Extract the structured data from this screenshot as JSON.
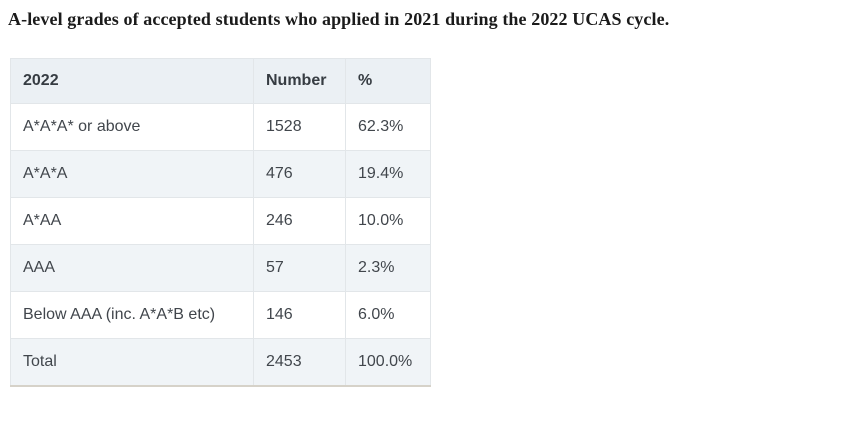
{
  "page": {
    "title": "A-level grades of accepted students who applied in 2021 during the 2022 UCAS cycle."
  },
  "table": {
    "headers": [
      "2022",
      "Number",
      "%"
    ],
    "rows": [
      {
        "grade": "A*A*A* or above",
        "number": "1528",
        "percent": "62.3%"
      },
      {
        "grade": "A*A*A",
        "number": "476",
        "percent": "19.4%"
      },
      {
        "grade": "A*AA",
        "number": "246",
        "percent": "10.0%"
      },
      {
        "grade": "AAA",
        "number": "57",
        "percent": "2.3%"
      },
      {
        "grade": "Below AAA (inc. A*A*B etc)",
        "number": "146",
        "percent": "6.0%"
      },
      {
        "grade": "Total",
        "number": "2453",
        "percent": "100.0%"
      }
    ]
  },
  "colors": {
    "header_row_bg": "#ebf0f4",
    "striped_row_bg": "#f0f4f7",
    "cell_border": "#e2e6e9",
    "table_bottom_border": "#d6d2c9",
    "table_text": "#41464c",
    "title_text": "#1b1b1b"
  },
  "chart_data": {
    "type": "table",
    "title": "A-level grades of accepted students who applied in 2021 during the 2022 UCAS cycle.",
    "columns": [
      "2022",
      "Number",
      "%"
    ],
    "rows": [
      [
        "A*A*A* or above",
        1528,
        62.3
      ],
      [
        "A*A*A",
        476,
        19.4
      ],
      [
        "A*AA",
        246,
        10.0
      ],
      [
        "AAA",
        57,
        2.3
      ],
      [
        "Below AAA (inc. A*A*B etc)",
        146,
        6.0
      ],
      [
        "Total",
        2453,
        100.0
      ]
    ],
    "notes": "Percent column shown with % suffix; rows alternate white and light blue-gray striping; Total row is striped."
  }
}
